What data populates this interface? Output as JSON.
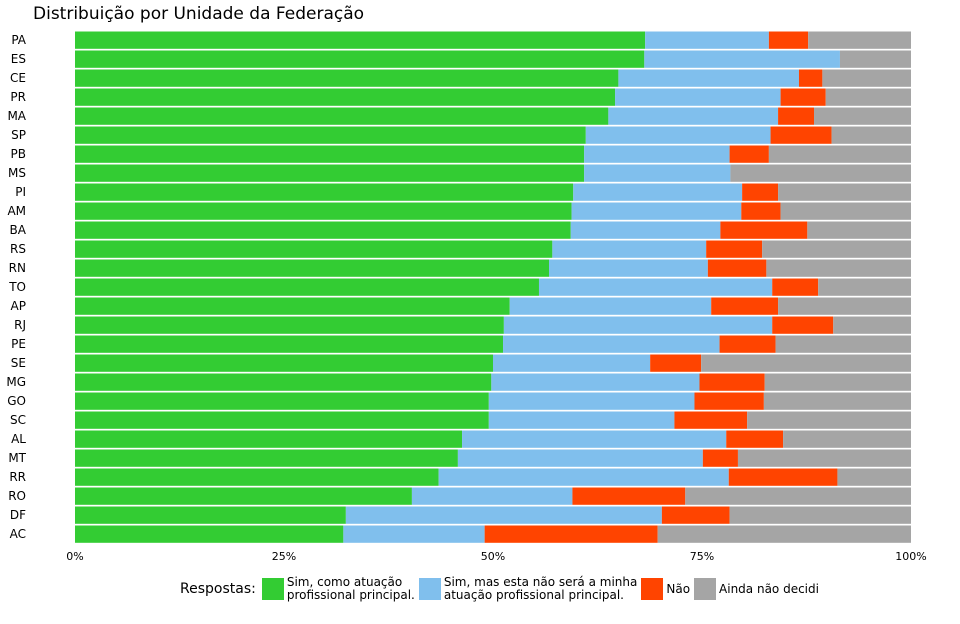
{
  "chart_data": {
    "type": "bar",
    "orientation": "horizontal",
    "stacked": "percent",
    "title": "Distribuição por Unidade da Federação",
    "categories": [
      "PA",
      "ES",
      "CE",
      "PR",
      "MA",
      "SP",
      "PB",
      "MS",
      "PI",
      "AM",
      "BA",
      "RS",
      "RN",
      "TO",
      "AP",
      "RJ",
      "PE",
      "SE",
      "MG",
      "GO",
      "SC",
      "AL",
      "MT",
      "RR",
      "RO",
      "DF",
      "AC"
    ],
    "series": [
      {
        "name": "Sim, como atuação profissional principal.",
        "color": "#33cc33",
        "values": [
          68.2,
          68.1,
          65.0,
          64.6,
          63.8,
          61.1,
          60.9,
          60.9,
          59.6,
          59.4,
          59.3,
          57.1,
          56.7,
          55.5,
          52.0,
          51.3,
          51.2,
          50.0,
          49.8,
          49.5,
          49.5,
          46.3,
          45.8,
          43.5,
          40.3,
          32.4,
          32.1
        ]
      },
      {
        "name": "Sim, mas esta não será a minha atuação profissional principal.",
        "color": "#80bfed",
        "values": [
          14.8,
          23.4,
          21.6,
          19.8,
          20.3,
          22.1,
          17.4,
          17.5,
          20.2,
          20.3,
          17.9,
          18.4,
          19.0,
          27.9,
          24.1,
          32.1,
          25.9,
          18.8,
          24.9,
          24.6,
          22.2,
          31.6,
          29.3,
          34.7,
          19.2,
          37.8,
          16.9
        ]
      },
      {
        "name": "Não",
        "color": "#ff4400",
        "values": [
          4.7,
          0.0,
          2.8,
          5.4,
          4.3,
          7.3,
          4.7,
          0.0,
          4.3,
          4.7,
          10.4,
          6.7,
          7.0,
          5.5,
          8.0,
          7.3,
          6.7,
          6.1,
          7.8,
          8.3,
          8.7,
          6.8,
          4.2,
          13.0,
          13.5,
          8.1,
          20.7
        ]
      },
      {
        "name": "Ainda não decidi",
        "color": "#a5a5a5",
        "values": [
          12.3,
          8.5,
          10.6,
          10.2,
          11.6,
          9.5,
          17.0,
          21.6,
          15.9,
          15.6,
          12.4,
          17.8,
          17.3,
          11.1,
          15.9,
          9.3,
          16.2,
          25.1,
          17.5,
          17.6,
          19.6,
          15.3,
          20.7,
          8.8,
          27.0,
          21.7,
          30.3
        ]
      }
    ],
    "xlim": [
      0,
      100
    ],
    "xticks": [
      "0%",
      "25%",
      "50%",
      "75%",
      "100%"
    ],
    "grid": false,
    "legend": {
      "title": "Respostas:",
      "placement": "bottom",
      "labels": [
        "Sim, como atuação\nprofissional principal.",
        "Sim, mas esta não será a minha\natuação profissional principal.",
        "Não",
        "Ainda não decidi"
      ]
    }
  }
}
